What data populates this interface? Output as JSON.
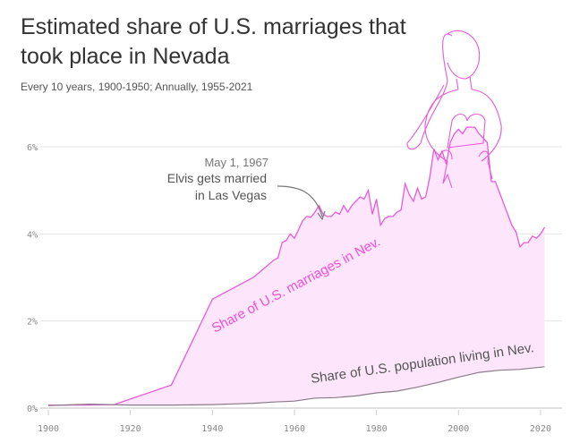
{
  "header": {
    "title": "Estimated share of U.S. marriages that took place in Nevada",
    "subtitle": "Every 10 years, 1900-1950; Annually, 1955-2021"
  },
  "colors": {
    "marriage_line": "#e85ad8",
    "marriage_fill": "#fde6fb",
    "population_line": "#8a7a88",
    "series_label": "#f04fd9",
    "grid": "#e6e6e6"
  },
  "chart_data": {
    "type": "area",
    "title": "Estimated share of U.S. marriages that took place in Nevada",
    "xlabel": "",
    "ylabel": "",
    "xlim": [
      1900,
      2023
    ],
    "ylim": [
      0,
      6.6
    ],
    "grid": true,
    "x_ticks": [
      {
        "value": 1900,
        "label": "1900"
      },
      {
        "value": 1920,
        "label": "1920"
      },
      {
        "value": 1940,
        "label": "1940"
      },
      {
        "value": 1960,
        "label": "1960"
      },
      {
        "value": 1980,
        "label": "1980"
      },
      {
        "value": 2000,
        "label": "2000"
      },
      {
        "value": 2020,
        "label": "2020"
      }
    ],
    "y_ticks": [
      {
        "value": 0,
        "label": "0%"
      },
      {
        "value": 2,
        "label": "2%"
      },
      {
        "value": 4,
        "label": "4%"
      },
      {
        "value": 6,
        "label": "6%"
      }
    ],
    "series": [
      {
        "name": "Share of U.S. marriages in Nev.",
        "points": [
          [
            1900,
            0.07
          ],
          [
            1910,
            0.07
          ],
          [
            1916,
            0.08
          ],
          [
            1930,
            0.53
          ],
          [
            1940,
            2.5
          ],
          [
            1950,
            3.0
          ],
          [
            1955,
            3.4
          ],
          [
            1956,
            3.45
          ],
          [
            1957,
            3.8
          ],
          [
            1958,
            3.85
          ],
          [
            1959,
            4.0
          ],
          [
            1960,
            3.9
          ],
          [
            1961,
            4.1
          ],
          [
            1962,
            4.3
          ],
          [
            1963,
            4.4
          ],
          [
            1964,
            4.38
          ],
          [
            1965,
            4.5
          ],
          [
            1966,
            4.65
          ],
          [
            1967,
            4.45
          ],
          [
            1968,
            4.4
          ],
          [
            1969,
            4.4
          ],
          [
            1970,
            4.5
          ],
          [
            1971,
            4.45
          ],
          [
            1972,
            4.65
          ],
          [
            1973,
            4.5
          ],
          [
            1974,
            4.65
          ],
          [
            1975,
            4.75
          ],
          [
            1976,
            4.85
          ],
          [
            1977,
            4.8
          ],
          [
            1978,
            5.0
          ],
          [
            1979,
            4.45
          ],
          [
            1980,
            4.8
          ],
          [
            1981,
            4.2
          ],
          [
            1982,
            4.35
          ],
          [
            1983,
            4.4
          ],
          [
            1984,
            4.4
          ],
          [
            1985,
            4.5
          ],
          [
            1986,
            4.55
          ],
          [
            1987,
            5.15
          ],
          [
            1988,
            4.9
          ],
          [
            1989,
            4.75
          ],
          [
            1990,
            5.05
          ],
          [
            1991,
            4.8
          ],
          [
            1992,
            4.85
          ],
          [
            1993,
            5.3
          ],
          [
            1994,
            5.95
          ],
          [
            1995,
            5.7
          ],
          [
            1996,
            5.9
          ],
          [
            1997,
            5.6
          ],
          [
            1998,
            6.1
          ],
          [
            1999,
            6.3
          ],
          [
            2000,
            6.4
          ],
          [
            2001,
            6.3
          ],
          [
            2002,
            6.45
          ],
          [
            2003,
            6.45
          ],
          [
            2004,
            6.45
          ],
          [
            2005,
            6.3
          ],
          [
            2006,
            6.2
          ],
          [
            2007,
            6.1
          ],
          [
            2008,
            5.2
          ],
          [
            2009,
            5.2
          ],
          [
            2010,
            4.95
          ],
          [
            2011,
            4.7
          ],
          [
            2012,
            4.45
          ],
          [
            2013,
            4.2
          ],
          [
            2014,
            4.05
          ],
          [
            2015,
            3.7
          ],
          [
            2016,
            3.8
          ],
          [
            2017,
            3.8
          ],
          [
            2018,
            3.95
          ],
          [
            2019,
            3.9
          ],
          [
            2020,
            4.0
          ],
          [
            2021,
            4.15
          ]
        ]
      },
      {
        "name": "Share of U.S. population living in Nev.",
        "points": [
          [
            1900,
            0.06
          ],
          [
            1910,
            0.09
          ],
          [
            1920,
            0.07
          ],
          [
            1930,
            0.07
          ],
          [
            1940,
            0.08
          ],
          [
            1950,
            0.11
          ],
          [
            1955,
            0.14
          ],
          [
            1960,
            0.16
          ],
          [
            1965,
            0.23
          ],
          [
            1970,
            0.24
          ],
          [
            1975,
            0.28
          ],
          [
            1980,
            0.35
          ],
          [
            1985,
            0.39
          ],
          [
            1990,
            0.48
          ],
          [
            1995,
            0.59
          ],
          [
            2000,
            0.71
          ],
          [
            2005,
            0.82
          ],
          [
            2010,
            0.87
          ],
          [
            2015,
            0.89
          ],
          [
            2021,
            0.95
          ]
        ]
      }
    ],
    "annotations": [
      {
        "date": "May 1, 1967",
        "text_line1": "Elvis gets married",
        "text_line2": "in Las Vegas",
        "x": 1967,
        "y": 4.65
      }
    ]
  }
}
